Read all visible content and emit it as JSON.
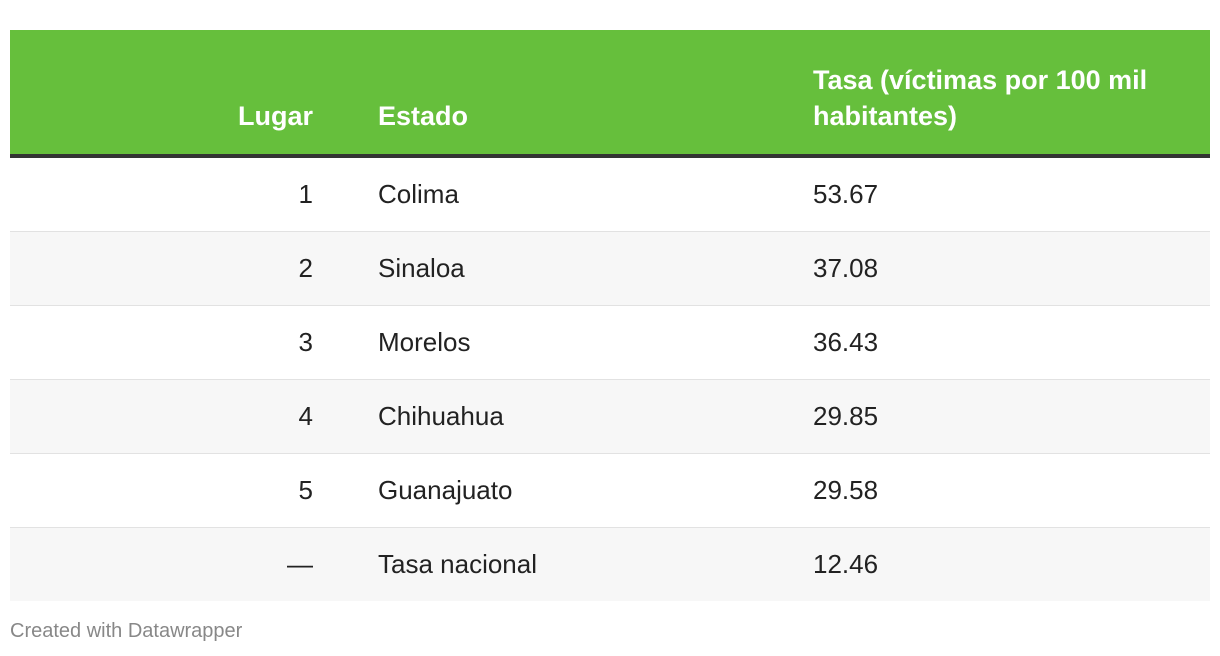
{
  "table": {
    "header": [
      "Lugar",
      "Estado",
      "Tasa (víctimas por 100 mil habitantes)"
    ],
    "rows": [
      [
        "1",
        "Colima",
        "53.67"
      ],
      [
        "2",
        "Sinaloa",
        "37.08"
      ],
      [
        "3",
        "Morelos",
        "36.43"
      ],
      [
        "4",
        "Chihuahua",
        "29.85"
      ],
      [
        "5",
        "Guanajuato",
        "29.58"
      ],
      [
        "—",
        "Tasa nacional",
        "12.46"
      ]
    ]
  },
  "footer": "Created with Datawrapper"
}
